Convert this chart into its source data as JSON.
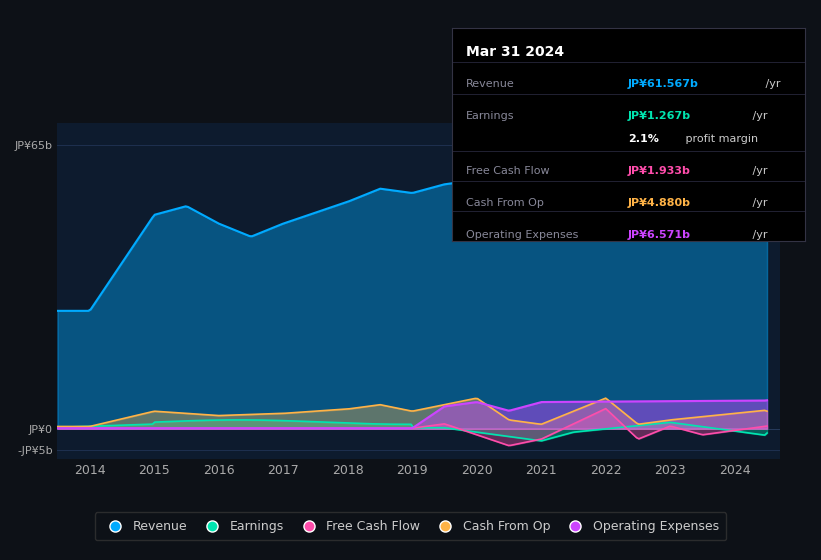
{
  "bg_color": "#0d1117",
  "plot_bg_color": "#0d1b2e",
  "grid_color": "#1e3050",
  "ylim": [
    -7,
    70
  ],
  "yticks": [
    -5,
    0,
    65
  ],
  "ytick_labels": [
    "-JP¥5b",
    "JP¥0",
    "JP¥65b"
  ],
  "xlim_start": 2013.5,
  "xlim_end": 2024.7,
  "xticks": [
    2014,
    2015,
    2016,
    2017,
    2018,
    2019,
    2020,
    2021,
    2022,
    2023,
    2024
  ],
  "revenue_color": "#00aaff",
  "earnings_color": "#00e5b0",
  "fcf_color": "#ff4dab",
  "cashfromop_color": "#ffb347",
  "opex_color": "#cc44ff",
  "legend_bg": "#0d1117",
  "legend_border": "#333333",
  "info_box": {
    "title": "Mar 31 2024",
    "rows": [
      {
        "label": "Revenue",
        "value": "JP¥61.567b",
        "value_color": "#00aaff",
        "suffix": " /yr"
      },
      {
        "label": "Earnings",
        "value": "JP¥1.267b",
        "value_color": "#00e5b0",
        "suffix": " /yr"
      },
      {
        "label": "",
        "value": "2.1%",
        "value_color": "#ffffff",
        "suffix": " profit margin"
      },
      {
        "label": "Free Cash Flow",
        "value": "JP¥1.933b",
        "value_color": "#ff4dab",
        "suffix": " /yr"
      },
      {
        "label": "Cash From Op",
        "value": "JP¥4.880b",
        "value_color": "#ffb347",
        "suffix": " /yr"
      },
      {
        "label": "Operating Expenses",
        "value": "JP¥6.571b",
        "value_color": "#cc44ff",
        "suffix": " /yr"
      }
    ]
  }
}
